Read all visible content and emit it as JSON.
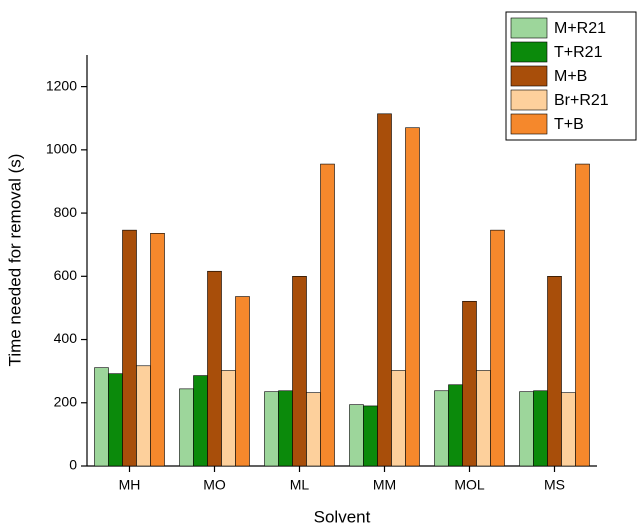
{
  "chart_data": {
    "type": "bar",
    "x_label": "Solvent",
    "y_label": "Time needed for removal (s)",
    "categories": [
      "MH",
      "MO",
      "ML",
      "MM",
      "MOL",
      "MS"
    ],
    "series": [
      {
        "name": "M+R21",
        "color": "#9dd69b",
        "values": [
          311,
          244,
          235,
          194,
          238,
          235
        ]
      },
      {
        "name": "T+R21",
        "color": "#0b8a0b",
        "values": [
          292,
          286,
          238,
          190,
          257,
          238
        ]
      },
      {
        "name": "M+B",
        "color": "#a84e0a",
        "values": [
          746,
          616,
          600,
          1114,
          521,
          600
        ]
      },
      {
        "name": "Br+R21",
        "color": "#fdd09c",
        "values": [
          317,
          302,
          232,
          302,
          302,
          232
        ]
      },
      {
        "name": "T+B",
        "color": "#f5882c",
        "values": [
          736,
          536,
          955,
          1070,
          746,
          955
        ]
      }
    ],
    "ylim": [
      0,
      1300
    ],
    "yticks": [
      0,
      200,
      400,
      600,
      800,
      1000,
      1200
    ],
    "legend": "upper right"
  }
}
